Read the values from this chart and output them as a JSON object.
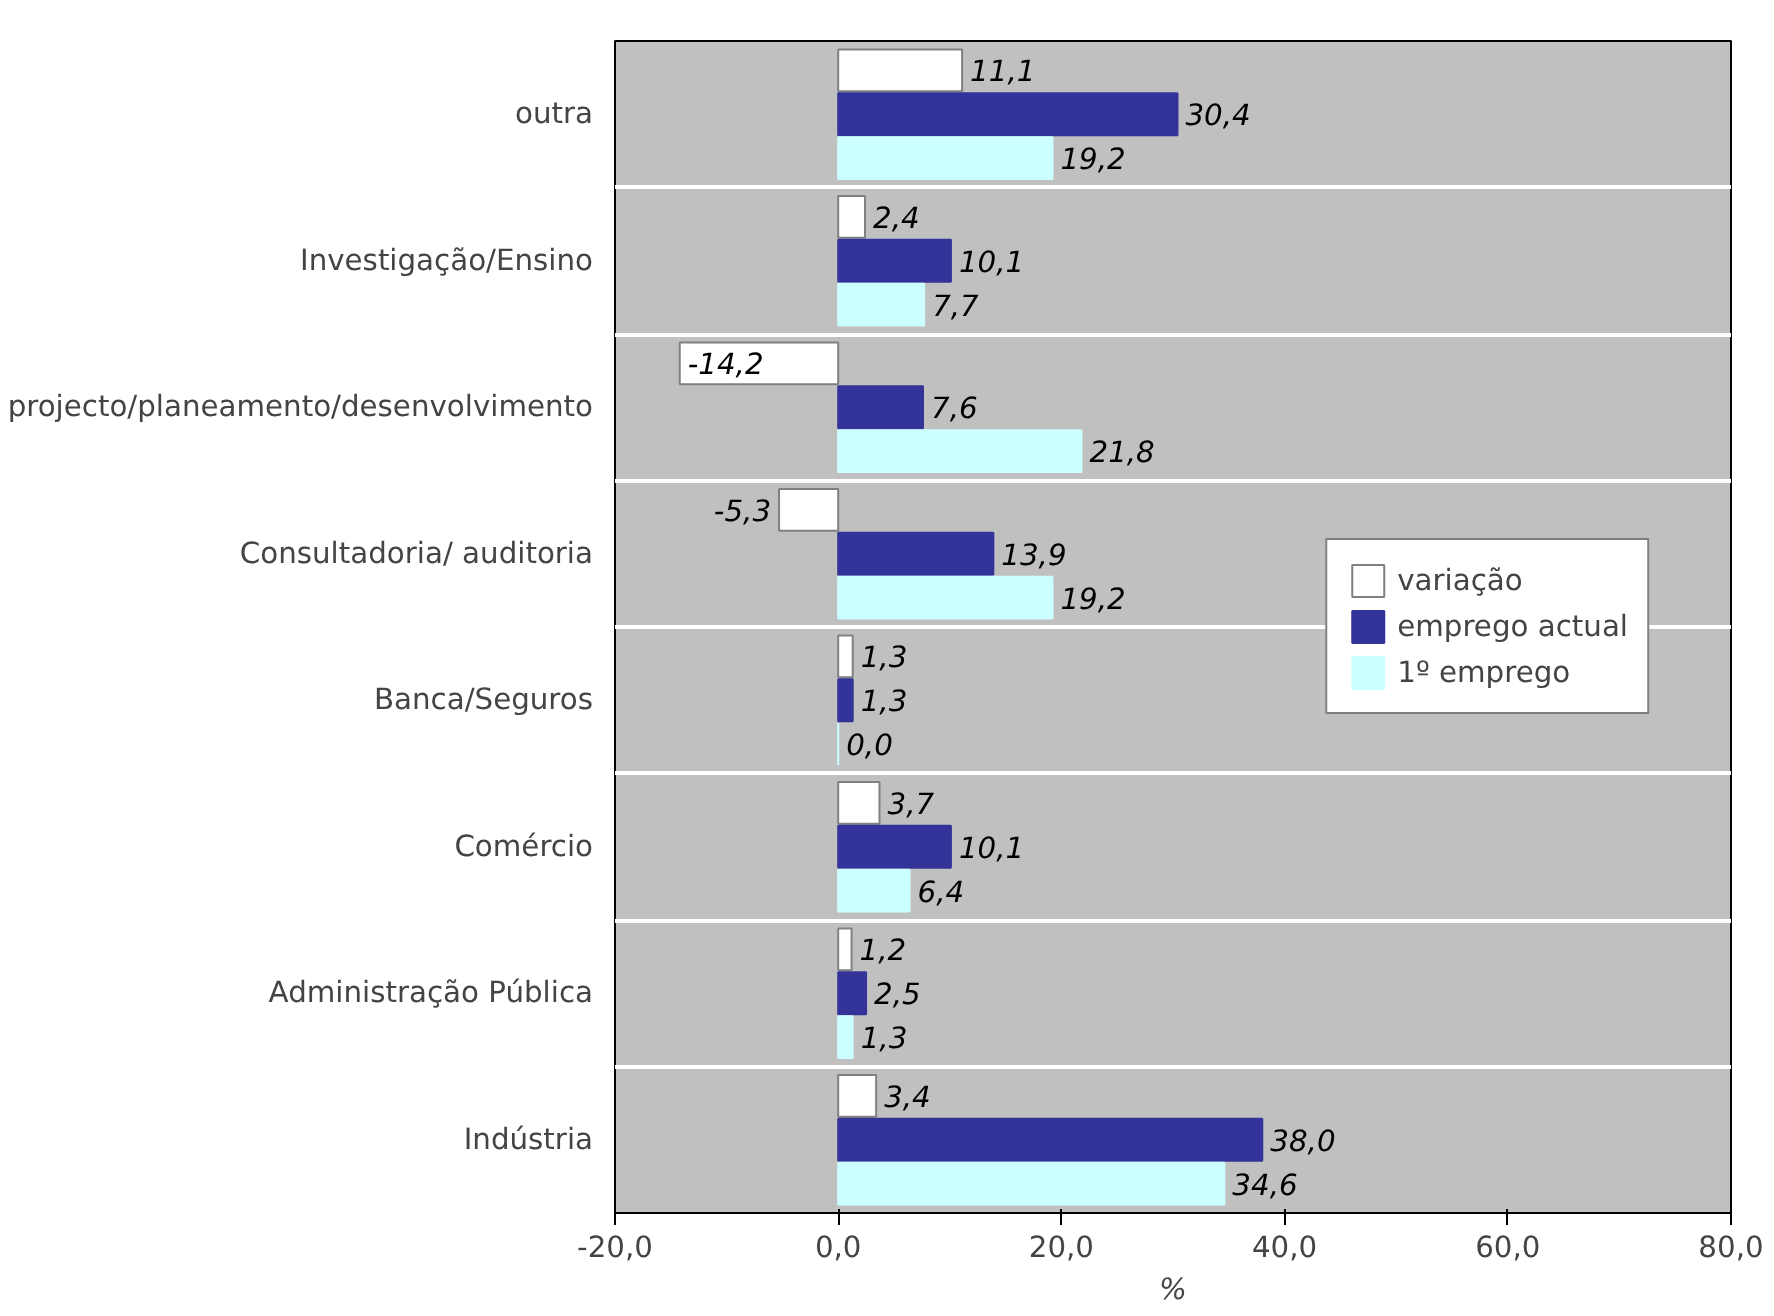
{
  "chart_data": {
    "type": "bar",
    "orientation": "horizontal",
    "xlabel": "%",
    "categories": [
      "outra",
      "Investigação/Ensino",
      "projecto/planeamento/desenvolvimento",
      "Consultadoria/ auditoria",
      "Banca/Seguros",
      "Comércio",
      "Administração Pública",
      "Indústria"
    ],
    "series": [
      {
        "name": "variação",
        "color": "#ffffff",
        "values": [
          11.1,
          2.4,
          -14.2,
          -5.3,
          1.3,
          3.7,
          1.2,
          3.4
        ],
        "value_labels": [
          "11,1",
          "2,4",
          "-14,2",
          "-5,3",
          "1,3",
          "3,7",
          "1,2",
          "3,4"
        ]
      },
      {
        "name": "emprego actual",
        "color": "#333399",
        "values": [
          30.4,
          10.1,
          7.6,
          13.9,
          1.3,
          10.1,
          2.5,
          38.0
        ],
        "value_labels": [
          "30,4",
          "10,1",
          "7,6",
          "13,9",
          "1,3",
          "10,1",
          "2,5",
          "38,0"
        ]
      },
      {
        "name": "1º emprego",
        "color": "#ccffff",
        "values": [
          19.2,
          7.7,
          21.8,
          19.2,
          0.0,
          6.4,
          1.3,
          34.6
        ],
        "value_labels": [
          "19,2",
          "7,7",
          "21,8",
          "19,2",
          "0,0",
          "6,4",
          "1,3",
          "34,6"
        ]
      }
    ],
    "xlim": [
      -20,
      80
    ],
    "xticks": [
      {
        "value": -20,
        "label": "-20,0"
      },
      {
        "value": 0,
        "label": "0,0"
      },
      {
        "value": 20,
        "label": "20,0"
      },
      {
        "value": 40,
        "label": "40,0"
      },
      {
        "value": 60,
        "label": "60,0"
      },
      {
        "value": 80,
        "label": "80,0"
      }
    ],
    "grid": "y",
    "legend": "right"
  }
}
